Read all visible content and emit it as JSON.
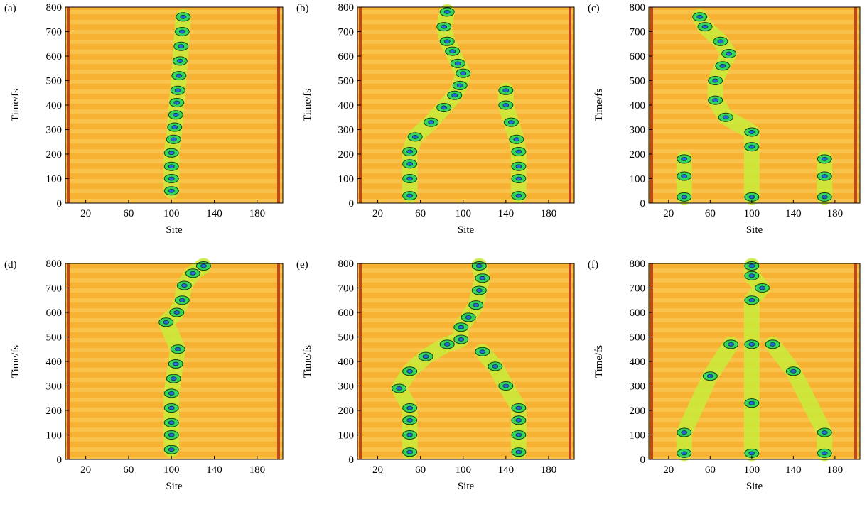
{
  "chart_data": [
    {
      "type": "contour",
      "label": "(a)",
      "xlabel": "Site",
      "ylabel": "Time/fs",
      "xlim": [
        1,
        204
      ],
      "ylim": [
        0,
        800
      ],
      "xticks": [
        20,
        60,
        100,
        140,
        180
      ],
      "yticks": [
        0,
        100,
        200,
        300,
        400,
        500,
        600,
        700,
        800
      ],
      "peaks": [
        {
          "x": [
            100,
            100,
            100,
            100,
            102,
            103,
            104,
            105,
            106,
            107,
            108,
            109,
            110,
            111
          ],
          "y": [
            50,
            100,
            150,
            205,
            260,
            310,
            360,
            410,
            460,
            520,
            580,
            640,
            700,
            760
          ]
        }
      ]
    },
    {
      "type": "contour",
      "label": "(b)",
      "xlabel": "Site",
      "ylabel": "Time/fs",
      "xlim": [
        1,
        204
      ],
      "ylim": [
        0,
        800
      ],
      "xticks": [
        20,
        60,
        100,
        140,
        180
      ],
      "yticks": [
        0,
        100,
        200,
        300,
        400,
        500,
        600,
        700,
        800
      ],
      "peaks": [
        {
          "x": [
            50,
            50,
            50,
            50,
            55,
            70,
            82,
            92,
            97,
            100,
            95,
            90,
            85,
            82,
            85
          ],
          "y": [
            30,
            100,
            160,
            210,
            270,
            330,
            390,
            440,
            480,
            530,
            570,
            620,
            660,
            720,
            780
          ]
        },
        {
          "x": [
            152,
            152,
            152,
            152,
            150,
            145,
            140,
            140
          ],
          "y": [
            30,
            100,
            150,
            210,
            260,
            330,
            400,
            460
          ]
        }
      ]
    },
    {
      "type": "contour",
      "label": "(c)",
      "xlabel": "Site",
      "ylabel": "Time/fs",
      "xlim": [
        1,
        204
      ],
      "ylim": [
        0,
        800
      ],
      "xticks": [
        20,
        60,
        100,
        140,
        180
      ],
      "yticks": [
        0,
        100,
        200,
        300,
        400,
        500,
        600,
        700,
        800
      ],
      "peaks": [
        {
          "x": [
            100,
            100,
            100,
            75,
            65,
            65,
            72,
            78,
            70,
            55,
            50
          ],
          "y": [
            25,
            230,
            290,
            350,
            420,
            500,
            560,
            610,
            660,
            720,
            760
          ]
        },
        {
          "x": [
            35,
            35,
            35
          ],
          "y": [
            25,
            110,
            180
          ]
        },
        {
          "x": [
            170,
            170,
            170
          ],
          "y": [
            25,
            110,
            180
          ]
        }
      ]
    },
    {
      "type": "contour",
      "label": "(d)",
      "xlabel": "Site",
      "ylabel": "Time/fs",
      "xlim": [
        1,
        204
      ],
      "ylim": [
        0,
        800
      ],
      "xticks": [
        20,
        60,
        100,
        140,
        180
      ],
      "yticks": [
        0,
        100,
        200,
        300,
        400,
        500,
        600,
        700,
        800
      ],
      "peaks": [
        {
          "x": [
            100,
            100,
            100,
            100,
            100,
            102,
            104,
            106,
            95,
            105,
            110,
            112,
            120,
            130
          ],
          "y": [
            40,
            100,
            150,
            210,
            270,
            330,
            390,
            450,
            560,
            600,
            650,
            710,
            760,
            790
          ]
        }
      ]
    },
    {
      "type": "contour",
      "label": "(e)",
      "xlabel": "Site",
      "ylabel": "Time/fs",
      "xlim": [
        1,
        204
      ],
      "ylim": [
        0,
        800
      ],
      "xticks": [
        20,
        60,
        100,
        140,
        180
      ],
      "yticks": [
        0,
        100,
        200,
        300,
        400,
        500,
        600,
        700,
        800
      ],
      "peaks": [
        {
          "x": [
            50,
            50,
            50,
            50,
            40,
            50,
            65,
            85,
            98,
            98,
            105,
            112,
            115,
            118,
            115
          ],
          "y": [
            30,
            100,
            160,
            210,
            290,
            360,
            420,
            470,
            490,
            540,
            580,
            630,
            690,
            740,
            790
          ]
        },
        {
          "x": [
            152,
            152,
            152,
            152,
            140,
            130,
            118
          ],
          "y": [
            30,
            100,
            160,
            210,
            300,
            380,
            440
          ]
        }
      ]
    },
    {
      "type": "contour",
      "label": "(f)",
      "xlabel": "Site",
      "ylabel": "Time/fs",
      "xlim": [
        1,
        204
      ],
      "ylim": [
        0,
        800
      ],
      "xticks": [
        20,
        60,
        100,
        140,
        180
      ],
      "yticks": [
        0,
        100,
        200,
        300,
        400,
        500,
        600,
        700,
        800
      ],
      "peaks": [
        {
          "x": [
            100,
            100,
            100,
            100,
            110,
            100,
            100
          ],
          "y": [
            25,
            230,
            470,
            650,
            700,
            750,
            790
          ]
        },
        {
          "x": [
            35,
            35,
            60,
            80
          ],
          "y": [
            25,
            110,
            340,
            470
          ]
        },
        {
          "x": [
            170,
            170,
            140,
            120
          ],
          "y": [
            25,
            110,
            360,
            470
          ]
        }
      ]
    }
  ]
}
